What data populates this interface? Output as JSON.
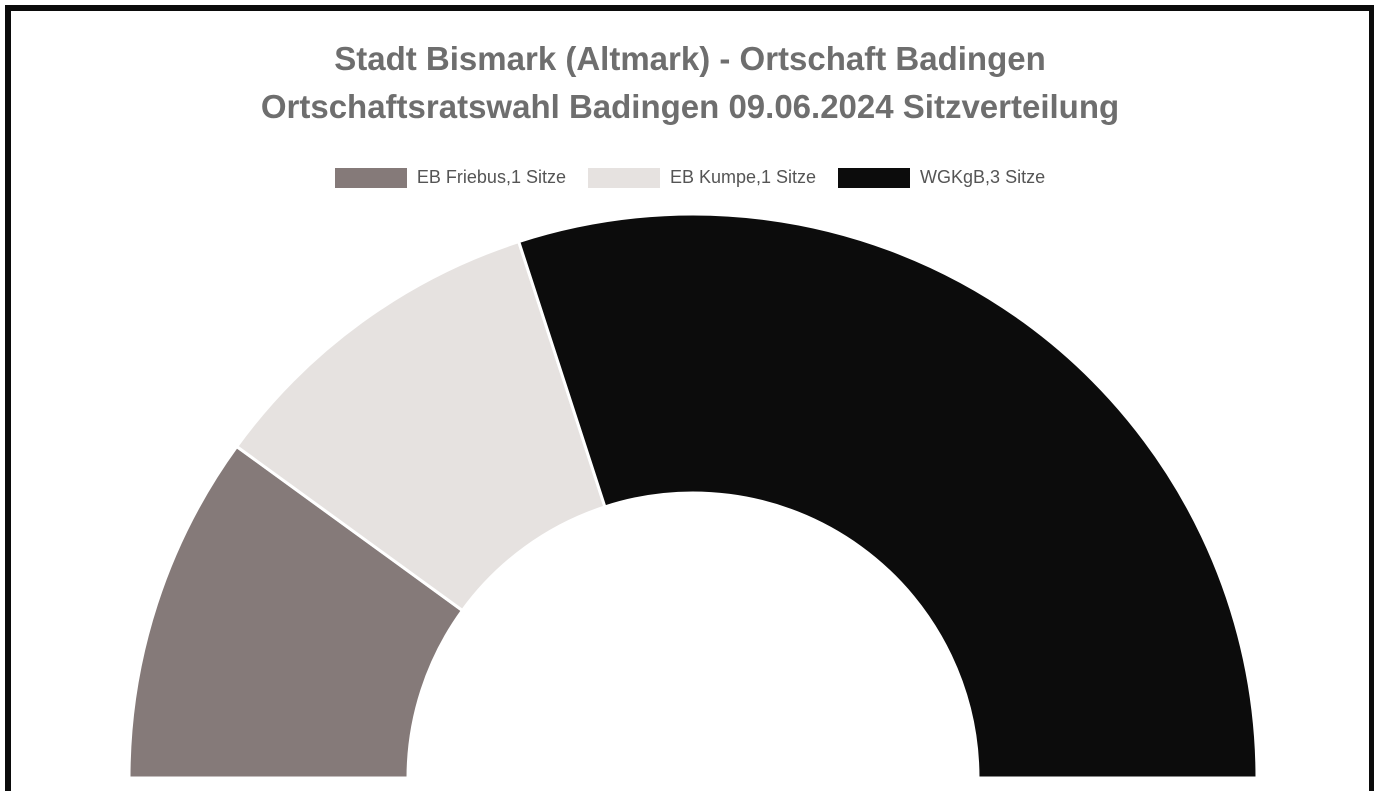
{
  "chart_data": {
    "type": "pie",
    "variant": "half-donut",
    "title": [
      "Stadt Bismark (Altmark) - Ortschaft Badingen",
      "Ortschaftsratswahl Badingen 09.06.2024 Sitzverteilung"
    ],
    "series": [
      {
        "name": "EB Friebus,1 Sitze",
        "value": 1,
        "color": "#857a79"
      },
      {
        "name": "EB Kumpe,1 Sitze",
        "value": 1,
        "color": "#e6e2e0"
      },
      {
        "name": "WGKgB,3 Sitze",
        "value": 3,
        "color": "#0c0c0c"
      }
    ],
    "legend_position": "top"
  }
}
